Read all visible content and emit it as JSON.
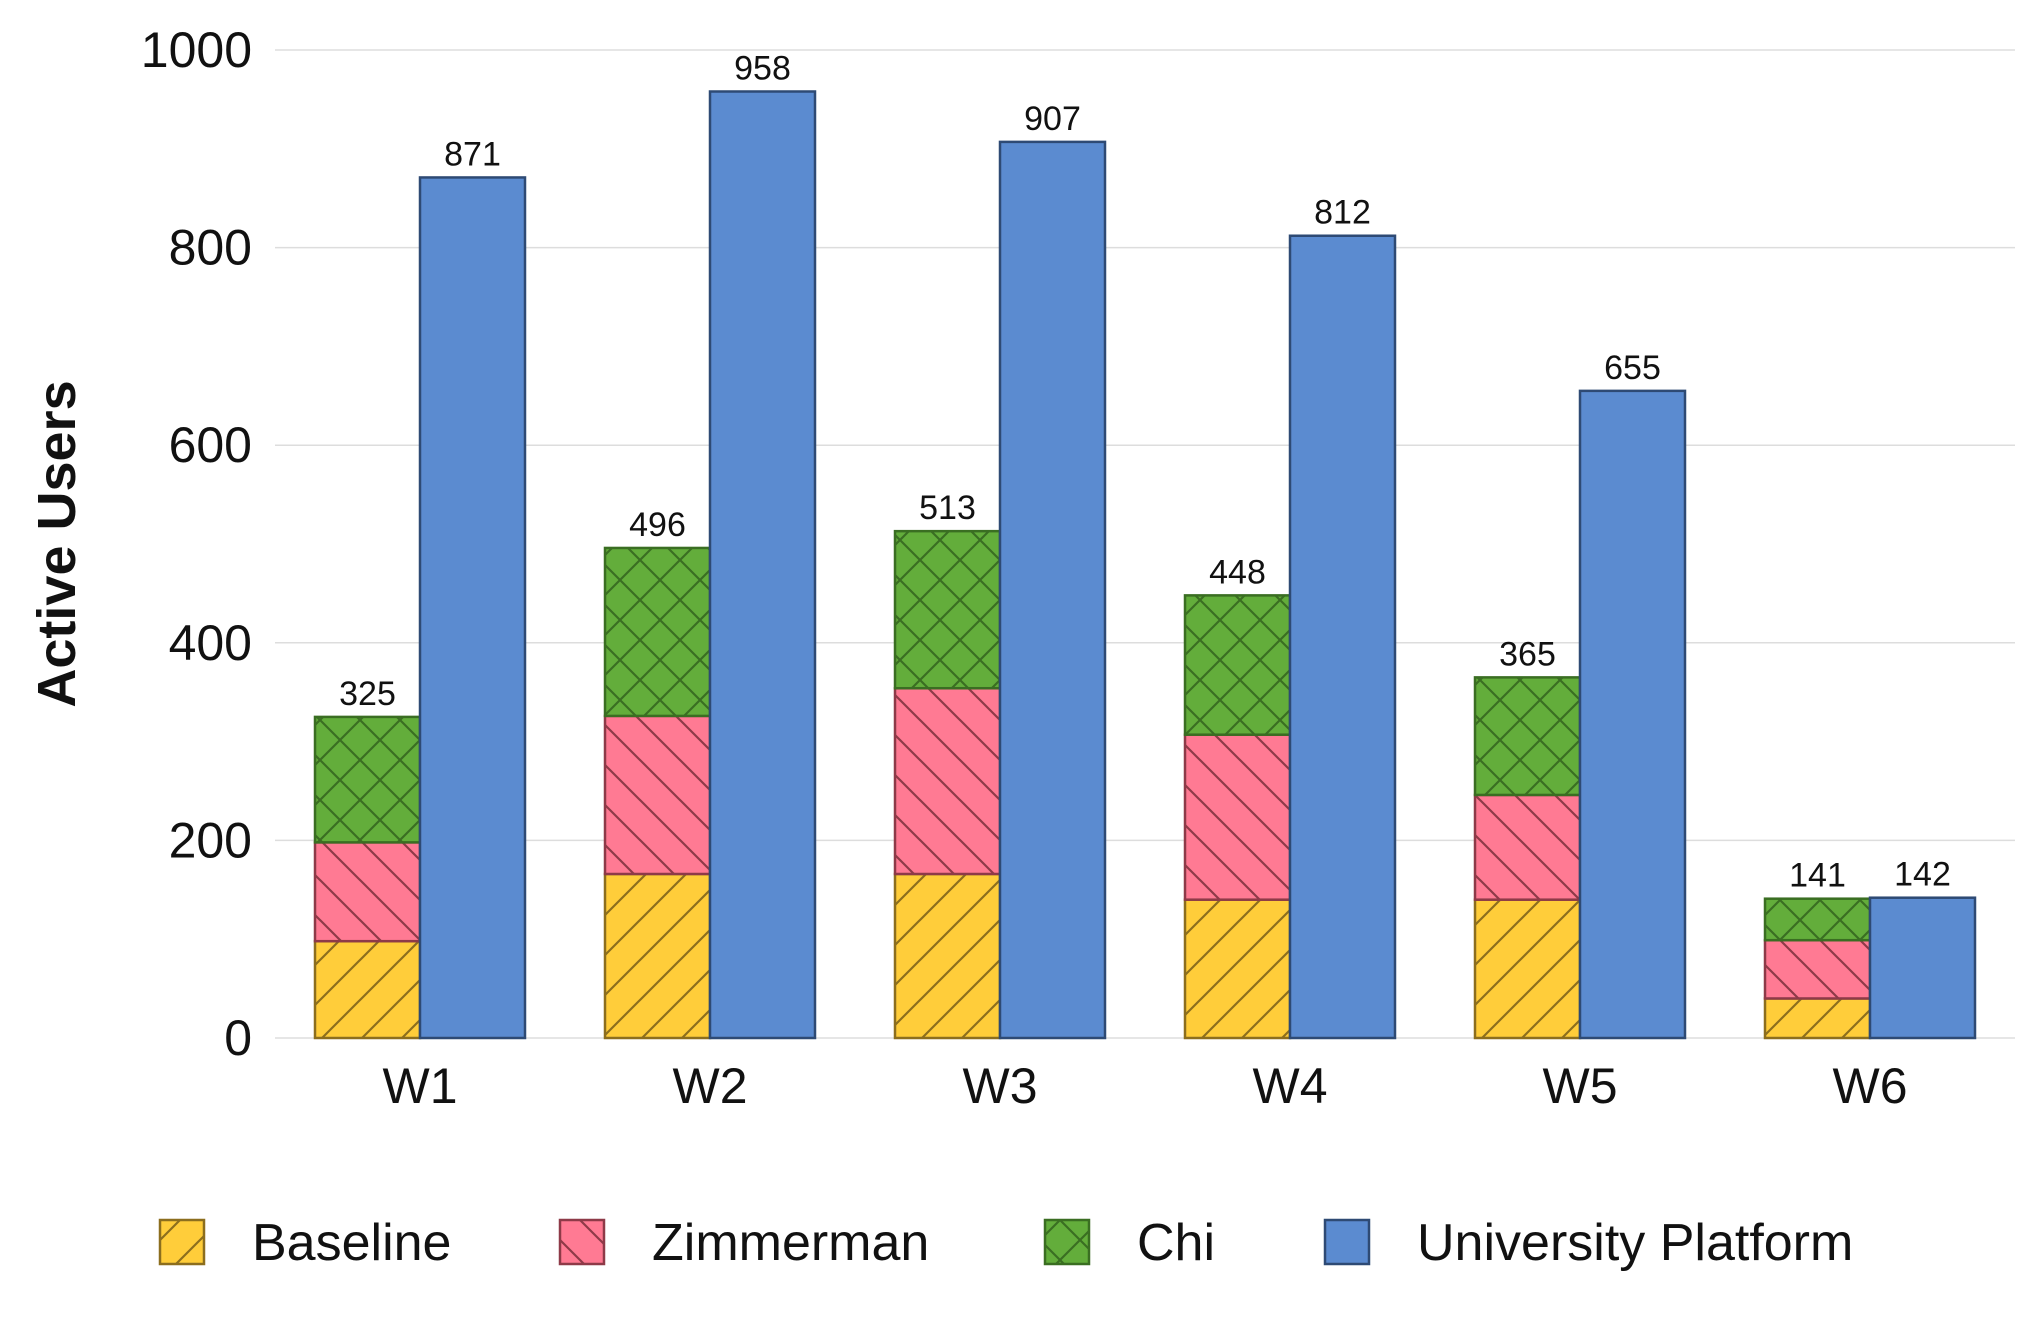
{
  "chart_data": {
    "type": "bar",
    "title": "",
    "xlabel": "",
    "ylabel": "Active Users",
    "ylim": [
      0,
      1000
    ],
    "yticks": [
      0,
      200,
      400,
      600,
      800,
      1000
    ],
    "grid": true,
    "legend_position": "bottom",
    "categories": [
      "W1",
      "W2",
      "W3",
      "W4",
      "W5",
      "W6"
    ],
    "series": [
      {
        "name": "Baseline",
        "stack": "left",
        "values": [
          98,
          166,
          166,
          140,
          140,
          40
        ],
        "color": "#FFCD3A",
        "edge_color": "#8C6E1E",
        "hatch": "forward-diagonal"
      },
      {
        "name": "Zimmerman",
        "stack": "left",
        "values": [
          100,
          160,
          188,
          167,
          106,
          59
        ],
        "color": "#FF7A93",
        "edge_color": "#8E3A48",
        "hatch": "back-diagonal"
      },
      {
        "name": "Chi",
        "stack": "left",
        "values": [
          127,
          170,
          159,
          141,
          119,
          42
        ],
        "color": "#63AD3B",
        "edge_color": "#3A6E22",
        "hatch": "crosshatch"
      },
      {
        "name": "University Platform",
        "stack": "right",
        "values": [
          871,
          958,
          907,
          812,
          655,
          142
        ],
        "color": "#5B8BD0",
        "edge_color": "#2E4A74",
        "hatch": "none"
      }
    ],
    "stack_totals": {
      "left": [
        "325",
        "496",
        "513",
        "448",
        "365",
        "141"
      ],
      "right": [
        "871",
        "958",
        "907",
        "812",
        "655",
        "142"
      ]
    }
  }
}
